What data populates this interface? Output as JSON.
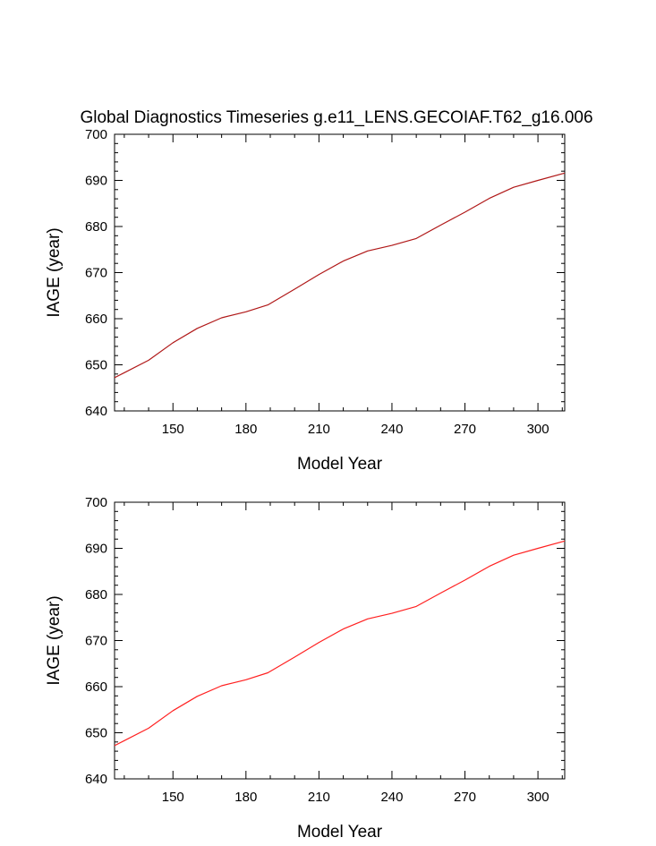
{
  "title": "Global Diagnostics Timeseries g.e11_LENS.GECOIAF.T62_g16.006",
  "chart_data": [
    {
      "type": "line",
      "xlabel": "Model Year",
      "ylabel": "IAGE (year)",
      "xlim": [
        126,
        311
      ],
      "ylim": [
        640,
        700
      ],
      "xticks": [
        150,
        180,
        210,
        240,
        270,
        300
      ],
      "yticks": [
        640,
        650,
        660,
        670,
        680,
        690,
        700
      ],
      "grid": false,
      "series": [
        {
          "color": "#b01818",
          "x": [
            126,
            130,
            140,
            150,
            160,
            170,
            180,
            189,
            200,
            210,
            220,
            230,
            240,
            250,
            260,
            270,
            280,
            290,
            300,
            311
          ],
          "y": [
            647.2,
            648.3,
            651.0,
            654.8,
            657.9,
            660.2,
            661.5,
            663.0,
            666.4,
            669.6,
            672.5,
            674.7,
            675.9,
            677.4,
            680.3,
            683.1,
            686.1,
            688.5,
            690.0,
            691.6
          ]
        }
      ]
    },
    {
      "type": "line",
      "xlabel": "Model Year",
      "ylabel": "IAGE (year)",
      "xlim": [
        126,
        311
      ],
      "ylim": [
        640,
        700
      ],
      "xticks": [
        150,
        180,
        210,
        240,
        270,
        300
      ],
      "yticks": [
        640,
        650,
        660,
        670,
        680,
        690,
        700
      ],
      "grid": false,
      "series": [
        {
          "color": "#ff2020",
          "x": [
            126,
            130,
            140,
            150,
            160,
            170,
            180,
            189,
            200,
            210,
            220,
            230,
            240,
            250,
            260,
            270,
            280,
            290,
            300,
            311
          ],
          "y": [
            647.2,
            648.3,
            651.0,
            654.8,
            657.9,
            660.2,
            661.5,
            663.0,
            666.4,
            669.6,
            672.5,
            674.7,
            675.9,
            677.4,
            680.3,
            683.1,
            686.1,
            688.5,
            690.0,
            691.6
          ]
        }
      ]
    }
  ]
}
